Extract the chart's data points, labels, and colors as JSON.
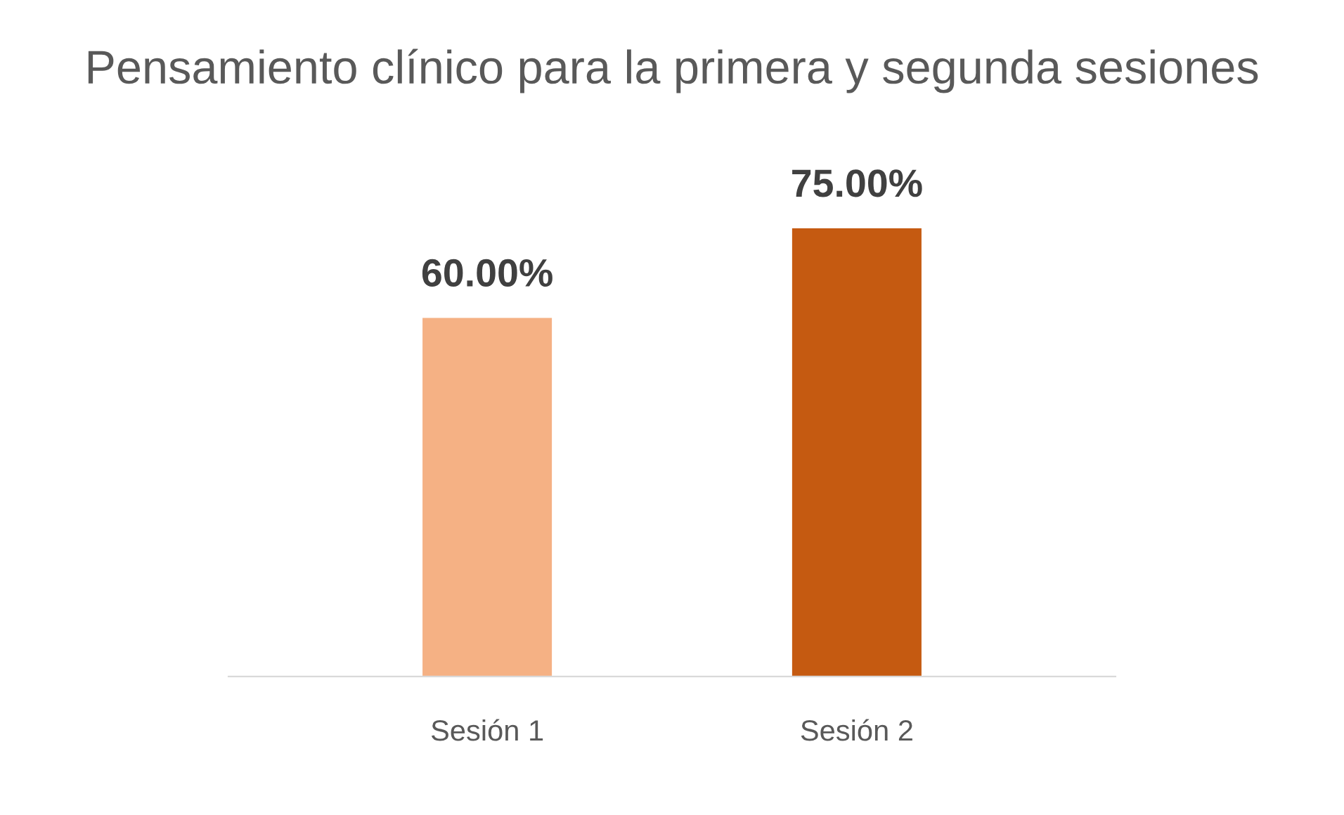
{
  "chart_data": {
    "type": "bar",
    "title": "Pensamiento clínico para la primera y segunda sesiones",
    "categories": [
      "Sesión 1",
      "Sesión 2"
    ],
    "values": [
      60,
      75
    ],
    "colors": [
      "#f5b184",
      "#c55a11"
    ],
    "value_labels": [
      "60.00%",
      "75.00%"
    ],
    "grid": false,
    "legend": false
  }
}
